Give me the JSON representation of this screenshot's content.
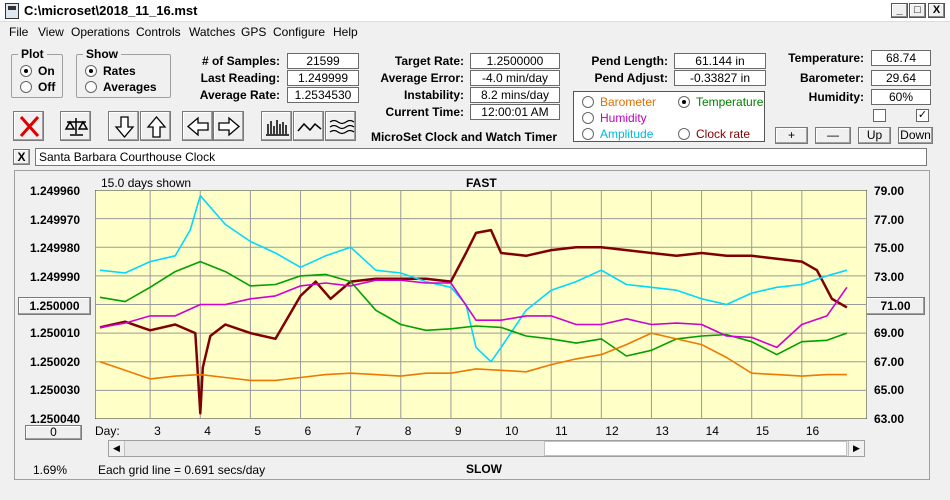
{
  "window": {
    "title": "C:\\microset\\2018_11_16.mst",
    "controls": [
      "_",
      "□",
      "X"
    ]
  },
  "menu": [
    "File",
    "View",
    "Operations",
    "Controls",
    "Watches",
    "GPS",
    "Configure",
    "Help"
  ],
  "plot_group": {
    "title": "Plot",
    "options": [
      "On",
      "Off"
    ],
    "selected": "On"
  },
  "show_group": {
    "title": "Show",
    "options": [
      "Rates",
      "Averages"
    ],
    "selected": "Rates"
  },
  "stats": {
    "samples_label": "# of Samples:",
    "samples": "21599",
    "last_reading_label": "Last Reading:",
    "last_reading": "1.249999",
    "average_rate_label": "Average Rate:",
    "average_rate": "1.2534530",
    "target_rate_label": "Target Rate:",
    "target_rate": "1.2500000",
    "average_error_label": "Average Error:",
    "average_error": "-4.0 min/day",
    "instability_label": "Instability:",
    "instability": "8.2 mins/day",
    "current_time_label": "Current Time:",
    "current_time": "12:00:01 AM",
    "pend_length_label": "Pend Length:",
    "pend_length": "61.144 in",
    "pend_adjust_label": "Pend Adjust:",
    "pend_adjust": "-0.33827 in",
    "temperature_label": "Temperature:",
    "temperature": "68.74",
    "barometer_label": "Barometer:",
    "barometer": "29.64",
    "humidity_label": "Humidity:",
    "humidity": "60%"
  },
  "app_caption": "MicroSet Clock and Watch Timer",
  "sensor_select": {
    "options": [
      {
        "label": "Barometer",
        "color": "#e07000"
      },
      {
        "label": "Temperature",
        "color": "#008000"
      },
      {
        "label": "Humidity",
        "color": "#c000c0"
      },
      {
        "label": "Clock rate",
        "color": "#800000"
      },
      {
        "label": "Amplitude",
        "color": "#00b8d8"
      }
    ],
    "selected": "Temperature"
  },
  "right_buttons": [
    "+",
    "—",
    "Up",
    "Down"
  ],
  "checkboxes": [
    false,
    true
  ],
  "close_watch_button": "X",
  "watch_name": "Santa Barbara Courthouse Clock",
  "center_button": "1.250000",
  "right_value_button": "71.00",
  "bottom_left_button": "0",
  "percent": "1.69%",
  "chart_data": {
    "type": "line",
    "title": "FAST",
    "bottom_label": "SLOW",
    "days_shown": "15.0 days shown",
    "grid_note": "Each grid line = 0.691 secs/day",
    "x_label": "Day:",
    "x_ticks": [
      "3",
      "4",
      "5",
      "6",
      "7",
      "8",
      "9",
      "10",
      "11",
      "12",
      "13",
      "14",
      "15",
      "16"
    ],
    "y_left_ticks": [
      "1.249960",
      "1.249970",
      "1.249980",
      "1.249990",
      "1.250000",
      "1.250010",
      "1.250020",
      "1.250030",
      "1.250040"
    ],
    "y_right_ticks": [
      "79.00",
      "77.00",
      "75.00",
      "73.00",
      "71.00",
      "69.00",
      "67.00",
      "65.00",
      "63.00"
    ],
    "xlim": [
      1.9,
      17.3
    ],
    "y_left_lim": [
      1.24996,
      1.25004
    ],
    "y_right_lim": [
      63,
      79
    ],
    "grid": true,
    "series": [
      {
        "name": "Clock rate",
        "color": "#800000",
        "axis": "left",
        "x": [
          2,
          2.5,
          3,
          3.5,
          3.9,
          4.0,
          4.05,
          4.2,
          4.5,
          5,
          5.5,
          6,
          6.3,
          6.6,
          7,
          7.5,
          8,
          8.5,
          9,
          9.3,
          9.5,
          9.8,
          10,
          10.5,
          11,
          11.5,
          12,
          12.5,
          13,
          13.5,
          14,
          14.5,
          15,
          15.5,
          16,
          16.3,
          16.6,
          16.9
        ],
        "y": [
          1.250008,
          1.250006,
          1.250009,
          1.250007,
          1.25001,
          1.250038,
          1.250022,
          1.250011,
          1.250007,
          1.25001,
          1.250012,
          1.249997,
          1.249992,
          1.249998,
          1.249992,
          1.249991,
          1.249991,
          1.249991,
          1.249992,
          1.249982,
          1.249975,
          1.249974,
          1.249982,
          1.249983,
          1.249981,
          1.24998,
          1.24998,
          1.249981,
          1.249982,
          1.249983,
          1.249982,
          1.249983,
          1.249983,
          1.249984,
          1.249985,
          1.249988,
          1.249998,
          1.250001
        ]
      },
      {
        "name": "Amplitude",
        "color": "#00d8ff",
        "axis": "left",
        "x": [
          2,
          2.5,
          3,
          3.5,
          3.8,
          4,
          4.3,
          4.5,
          5,
          5.5,
          6,
          6.5,
          7,
          7.5,
          8,
          8.5,
          9,
          9.3,
          9.5,
          9.8,
          10,
          10.5,
          11,
          11.5,
          12,
          12.5,
          13,
          13.5,
          14,
          14.5,
          15,
          15.5,
          16,
          16.5,
          16.9
        ],
        "y": [
          1.249988,
          1.249989,
          1.249985,
          1.249983,
          1.249974,
          1.249962,
          1.249968,
          1.249972,
          1.249978,
          1.249982,
          1.249987,
          1.249983,
          1.24998,
          1.249988,
          1.249989,
          1.249992,
          1.249994,
          1.25,
          1.250015,
          1.25002,
          1.250015,
          1.250002,
          1.249995,
          1.249992,
          1.249988,
          1.249993,
          1.249994,
          1.249995,
          1.249998,
          1.25,
          1.249996,
          1.249994,
          1.249993,
          1.24999,
          1.249988
        ]
      },
      {
        "name": "Temperature",
        "color": "#00a000",
        "axis": "right",
        "x": [
          2,
          2.5,
          3,
          3.5,
          4,
          4.5,
          5,
          5.5,
          6,
          6.5,
          7,
          7.5,
          8,
          8.5,
          9,
          9.5,
          10,
          10.5,
          11,
          11.5,
          12,
          12.5,
          13,
          13.5,
          14,
          14.5,
          15,
          15.5,
          16,
          16.5,
          16.9
        ],
        "y": [
          71.5,
          71.2,
          72.2,
          73.3,
          74.0,
          73.3,
          72.3,
          72.4,
          73.0,
          73.1,
          72.6,
          70.6,
          69.6,
          69.2,
          69.3,
          69.5,
          69.4,
          68.8,
          68.6,
          68.3,
          68.6,
          67.4,
          67.8,
          68.6,
          68.8,
          68.9,
          68.4,
          67.5,
          68.4,
          68.5,
          69.0
        ]
      },
      {
        "name": "Humidity",
        "color": "#d000d0",
        "axis": "right",
        "x": [
          2,
          2.5,
          3,
          3.5,
          4,
          4.5,
          5,
          5.5,
          6,
          6.5,
          7,
          7.5,
          8,
          8.5,
          9,
          9.5,
          10,
          10.5,
          11,
          11.5,
          12,
          12.5,
          13,
          13.5,
          14,
          14.5,
          15,
          15.5,
          16,
          16.5,
          16.9
        ],
        "y": [
          69.4,
          69.7,
          70.2,
          70.2,
          71.0,
          71.0,
          71.4,
          71.6,
          72.3,
          72.5,
          72.3,
          72.7,
          72.7,
          72.5,
          72.5,
          69.9,
          69.9,
          70.2,
          70.2,
          69.6,
          69.6,
          70.0,
          69.6,
          69.7,
          69.6,
          68.8,
          68.7,
          68.0,
          69.6,
          70.2,
          72.2
        ]
      },
      {
        "name": "Barometer",
        "color": "#f07800",
        "axis": "right",
        "x": [
          2,
          2.5,
          3,
          3.5,
          4,
          4.5,
          5,
          5.5,
          6,
          6.5,
          7,
          7.5,
          8,
          8.5,
          9,
          9.5,
          10,
          10.5,
          11,
          11.5,
          12,
          12.5,
          13,
          13.5,
          14,
          14.5,
          15,
          15.5,
          16,
          16.5,
          16.9
        ],
        "y": [
          67.0,
          66.4,
          65.8,
          66.0,
          66.1,
          65.9,
          65.7,
          65.7,
          65.9,
          66.1,
          66.2,
          66.1,
          66.0,
          66.2,
          66.2,
          66.5,
          66.4,
          66.3,
          66.8,
          67.2,
          67.5,
          68.2,
          69.0,
          68.6,
          68.2,
          67.3,
          66.2,
          66.1,
          66.0,
          66.1,
          66.1
        ]
      }
    ]
  }
}
